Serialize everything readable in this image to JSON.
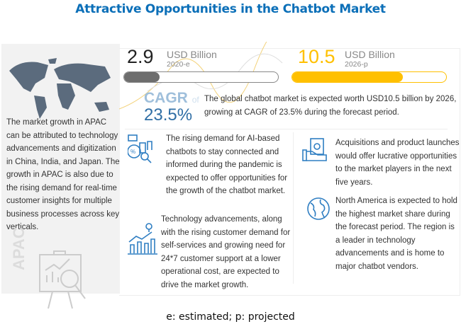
{
  "title": "Attractive Opportunities in the Chatbot Market",
  "left_panel": {
    "text": "The market growth in APAC can be attributed to technology advancements and digitization in China, India, and Japan. The growth in APAC is also due to the rising demand for real-time customer insights for multiple business processes across key verticals.",
    "region_label": "APAC",
    "map_icon": "world-map-icon",
    "chart_icon": "presentation-analytics-icon"
  },
  "market_2020": {
    "value": "2.9",
    "unit": "USD Billion",
    "year": "2020-e",
    "fill_percent": 23,
    "color": "#6d6d6d"
  },
  "market_2026": {
    "value": "10.5",
    "unit": "USD Billion",
    "year": "2026-p",
    "fill_percent": 72,
    "color": "#ffc000"
  },
  "cagr": {
    "label": "CAGR",
    "of": "of",
    "value": "23.5%",
    "summary": "The global chatbot market is expected worth USD10.5 billion by 2026, growing at CAGR of 23.5% during the forecast period."
  },
  "insights": [
    {
      "icon": "analytics-report-icon",
      "text": "The rising demand for AI-based chatbots to stay connected and informed during the pandemic is expected to offer opportunities for the growth of the chatbot market."
    },
    {
      "icon": "growth-chart-icon",
      "text": "Technology advancements, along with the rising customer demand for self-services and growing need for 24*7 customer support at a lower operational cost, are expected to drive the market growth."
    },
    {
      "icon": "money-hand-icon",
      "text": "Acquisitions and product launches would offer lucrative opportunities to the market players in the next five years."
    },
    {
      "icon": "globe-icon",
      "text": "North America is expected to hold the highest market share during the forecast period. The region is a leader in technology advancements and is home to major chatbot vendors."
    }
  ],
  "footnote": "e: estimated; p: projected"
}
